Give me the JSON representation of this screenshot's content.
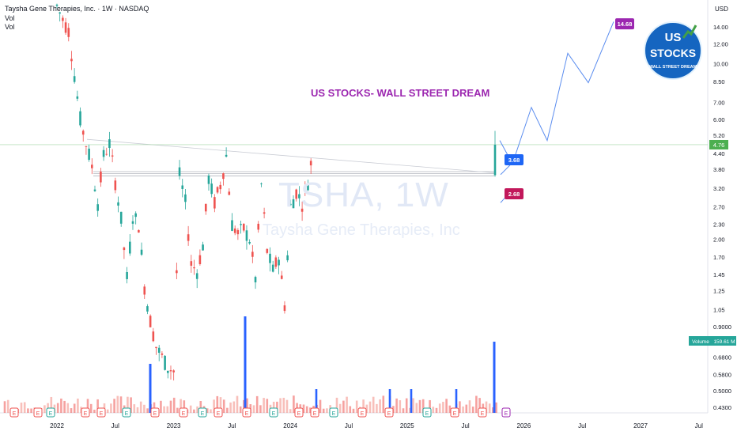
{
  "header": {
    "symbol_line": "Taysha Gene Therapies, Inc. · 1W · NASDAQ",
    "vol1": "Vol",
    "vol2": "Vol"
  },
  "watermark": {
    "ticker": "TSHA, 1W",
    "company": "Taysha Gene Therapies, Inc"
  },
  "annotation": "US STOCKS- WALL STREET DREAM",
  "logo": {
    "line1": "US",
    "line2": "STOCKS",
    "line3": "WALL STREET DREAM"
  },
  "colors": {
    "up": "#26a69a",
    "down": "#ef5350",
    "volume": "#2962ff",
    "projection": "#5b8def",
    "purple": "#9c27b0"
  },
  "chart_data": {
    "type": "line",
    "currency": "USD",
    "price_axis_labels": [
      "14.00",
      "12.00",
      "10.00",
      "8.50",
      "7.00",
      "6.00",
      "5.20",
      "4.40",
      "3.80",
      "3.20",
      "2.70",
      "2.30",
      "2.00",
      "1.70",
      "1.45",
      "1.25",
      "1.05",
      "0.9000",
      "0.6800",
      "0.5800",
      "0.5000",
      "0.4300"
    ],
    "time_axis_labels": [
      "2022",
      "Jul",
      "2023",
      "Jul",
      "2024",
      "Jul",
      "2025",
      "Jul",
      "2026",
      "Jul",
      "2027",
      "Jul"
    ],
    "last_price": "4.76",
    "volume_label": "Volume",
    "volume_value": "159.61 M",
    "price_targets": [
      "14.68",
      "3.68",
      "2.68"
    ],
    "horizontal_level": 3.65,
    "projection_path": [
      [
        0.0,
        4.76
      ],
      [
        0.04,
        4.0
      ],
      [
        0.1,
        6.6
      ],
      [
        0.16,
        5.0
      ],
      [
        0.24,
        11.0
      ],
      [
        0.32,
        8.4
      ],
      [
        0.41,
        14.68
      ]
    ],
    "price_path": [
      [
        0,
        17
      ],
      [
        0.05,
        15
      ],
      [
        0.1,
        13.5
      ],
      [
        0.15,
        9
      ],
      [
        0.2,
        6
      ],
      [
        0.25,
        4.8
      ],
      [
        0.3,
        3.9
      ],
      [
        0.35,
        2.8
      ],
      [
        0.4,
        4.3
      ],
      [
        0.45,
        4.8
      ],
      [
        0.5,
        3.4
      ],
      [
        0.55,
        2.4
      ],
      [
        0.6,
        1.4
      ],
      [
        0.65,
        2.5
      ],
      [
        0.7,
        2.3
      ],
      [
        0.75,
        1.3
      ],
      [
        0.8,
        0.95
      ],
      [
        0.85,
        0.75
      ],
      [
        0.9,
        0.68
      ],
      [
        0.95,
        0.62
      ],
      [
        1.0,
        0.6
      ],
      [
        1.05,
        3.6
      ],
      [
        1.1,
        2.8
      ],
      [
        1.15,
        1.6
      ],
      [
        1.2,
        1.5
      ],
      [
        1.25,
        1.9
      ],
      [
        1.3,
        3.5
      ],
      [
        1.35,
        2.8
      ],
      [
        1.4,
        3.3
      ],
      [
        1.45,
        4.3
      ],
      [
        1.5,
        2.3
      ],
      [
        1.55,
        2.1
      ],
      [
        1.6,
        2.2
      ],
      [
        1.65,
        2.0
      ],
      [
        1.7,
        1.4
      ],
      [
        1.75,
        3.3
      ],
      [
        1.8,
        1.8
      ],
      [
        1.85,
        1.5
      ],
      [
        1.9,
        1.7
      ],
      [
        1.95,
        1.1
      ],
      [
        2.0,
        2.7
      ],
      [
        2.05,
        3.1
      ],
      [
        2.1,
        2.8
      ],
      [
        2.15,
        3.4
      ],
      [
        2.2,
        4.76
      ]
    ],
    "volume_spikes": [
      [
        "2022-late",
        0.55
      ],
      [
        "2023-jul",
        1.0
      ],
      [
        "2025-jul",
        0.73
      ]
    ]
  }
}
